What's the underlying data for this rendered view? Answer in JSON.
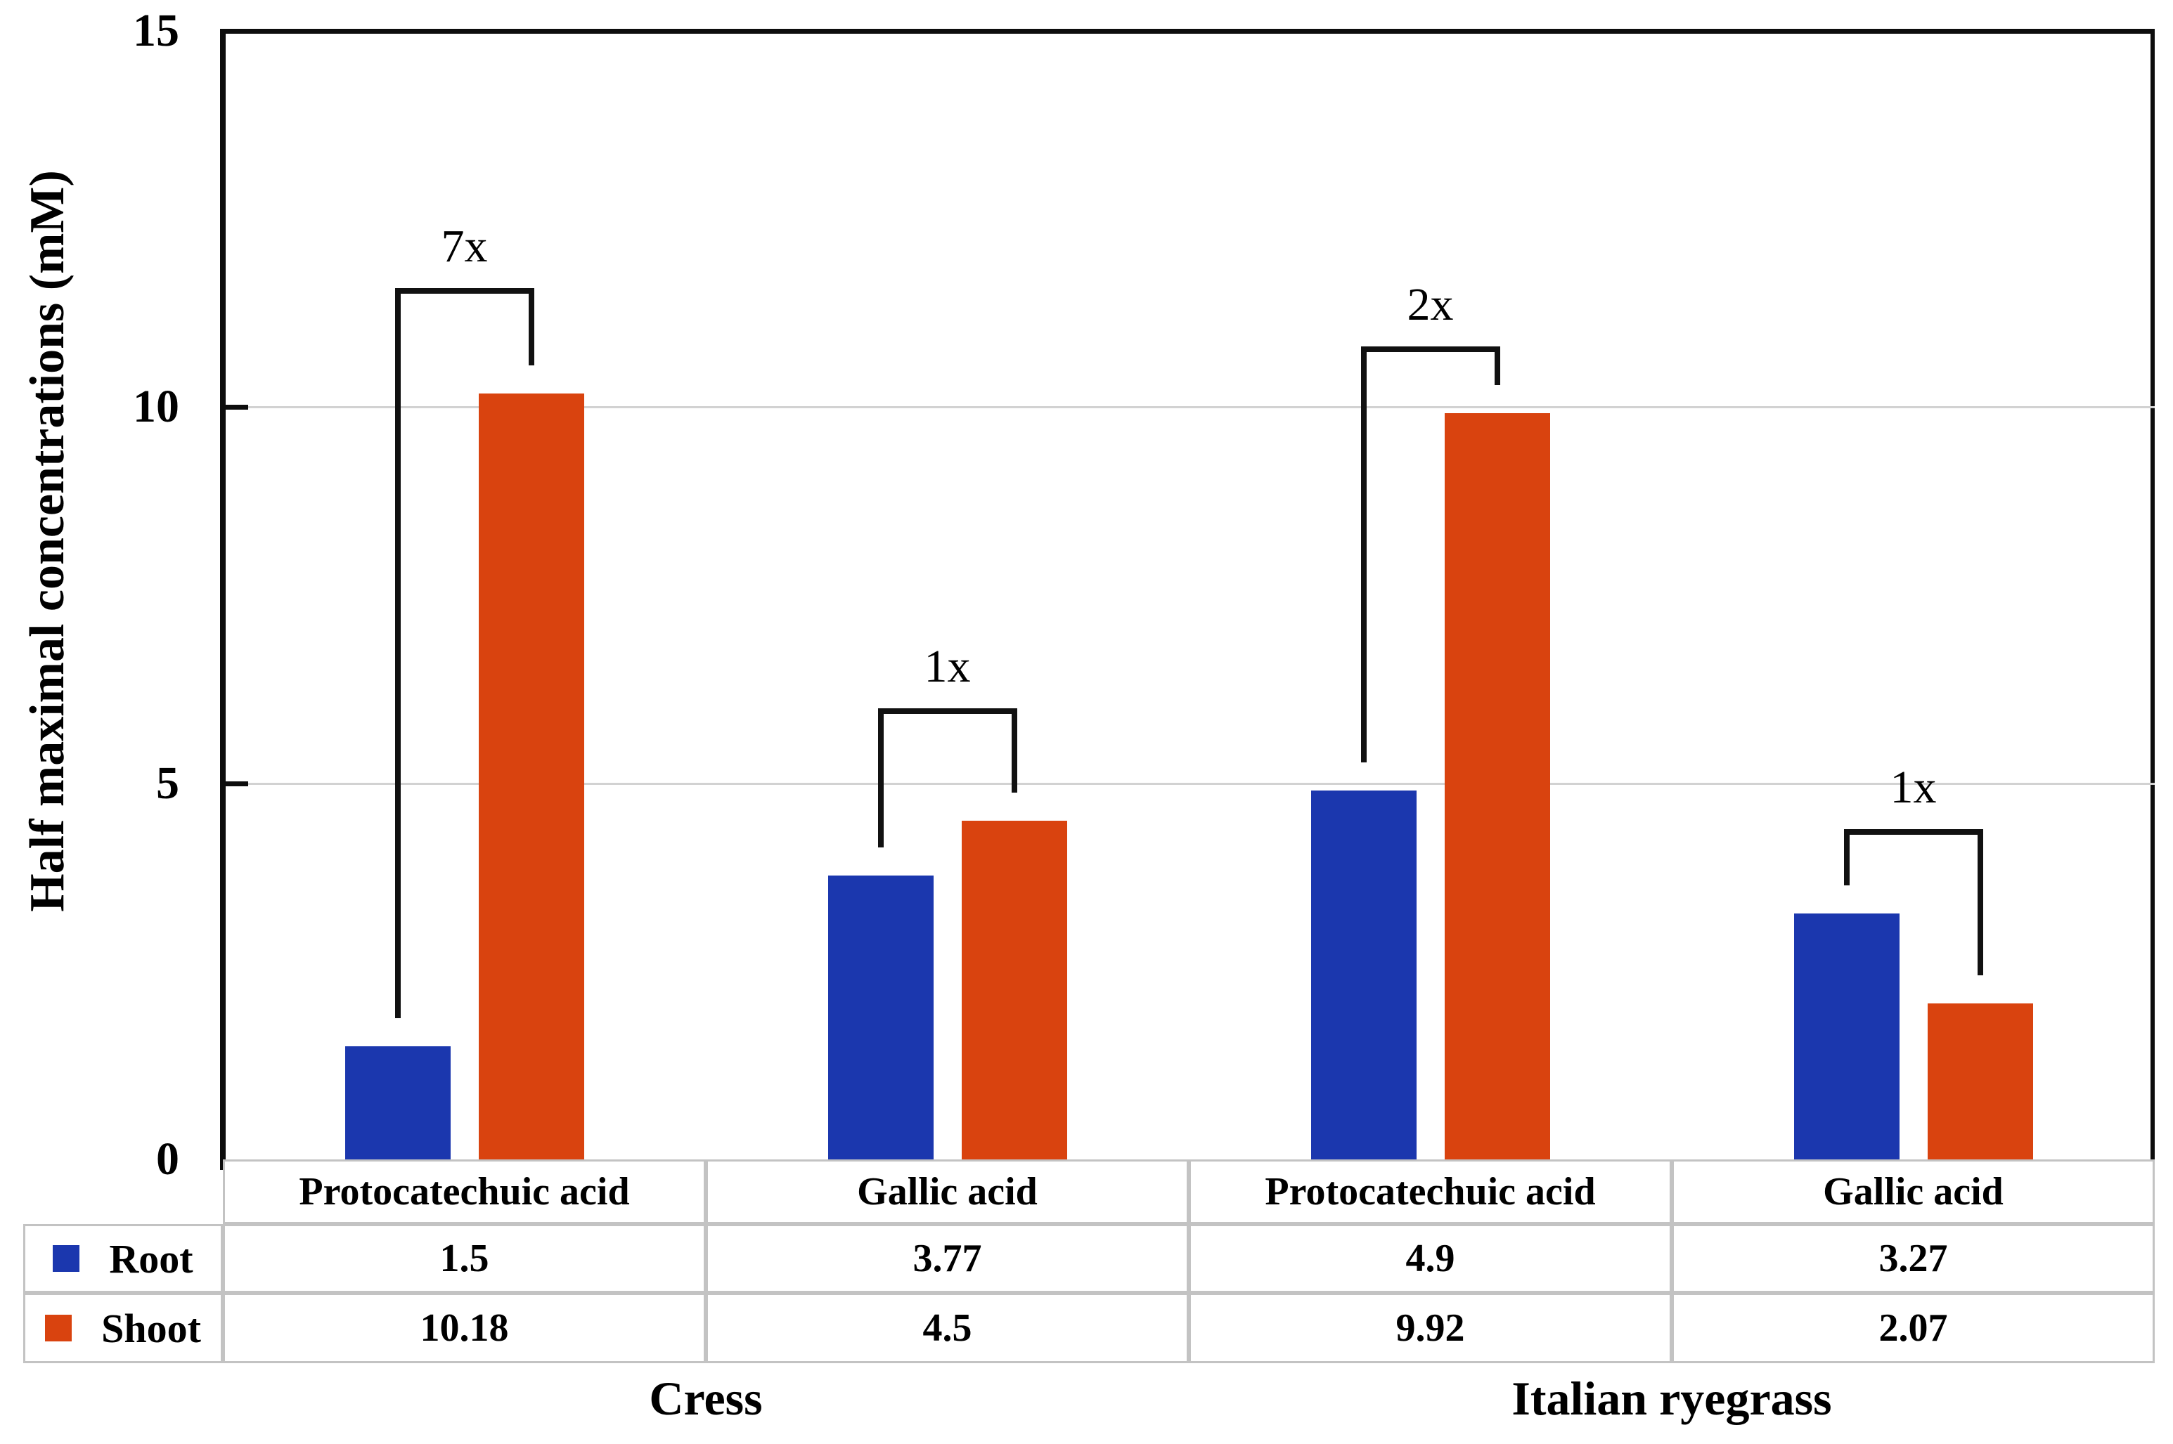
{
  "chart_data": {
    "type": "bar",
    "title": "",
    "ylabel": "Half maximal concentrations (mM)",
    "ylim": [
      0,
      15
    ],
    "yticks": [
      0,
      5,
      10,
      15
    ],
    "grid": "horizontal gridlines at 5 and 10, light gray",
    "legend_position": "left column of the data table below the plot",
    "categories": [
      "Protocatechuic acid",
      "Gallic acid",
      "Protocatechuic acid",
      "Gallic acid"
    ],
    "category_groups": [
      {
        "label": "Cress",
        "span": [
          0,
          1
        ]
      },
      {
        "label": "Italian ryegrass",
        "span": [
          2,
          3
        ]
      }
    ],
    "series": [
      {
        "name": "Root",
        "color": "#1b37ae",
        "values": [
          1.5,
          3.77,
          4.9,
          3.27
        ]
      },
      {
        "name": "Shoot",
        "color": "#d9430f",
        "values": [
          10.18,
          4.5,
          9.92,
          2.07
        ]
      }
    ],
    "annotations": [
      {
        "group_index": 0,
        "label": "7x"
      },
      {
        "group_index": 1,
        "label": "1x"
      },
      {
        "group_index": 2,
        "label": "2x"
      },
      {
        "group_index": 3,
        "label": "1x"
      }
    ],
    "data_table": {
      "column_headers": [
        "Protocatechuic acid",
        "Gallic acid",
        "Protocatechuic acid",
        "Gallic acid"
      ],
      "row_headers": [
        "Root",
        "Shoot"
      ],
      "rows": [
        [
          "1.5",
          "3.77",
          "4.9",
          "3.27"
        ],
        [
          "10.18",
          "4.5",
          "9.92",
          "2.07"
        ]
      ]
    }
  }
}
